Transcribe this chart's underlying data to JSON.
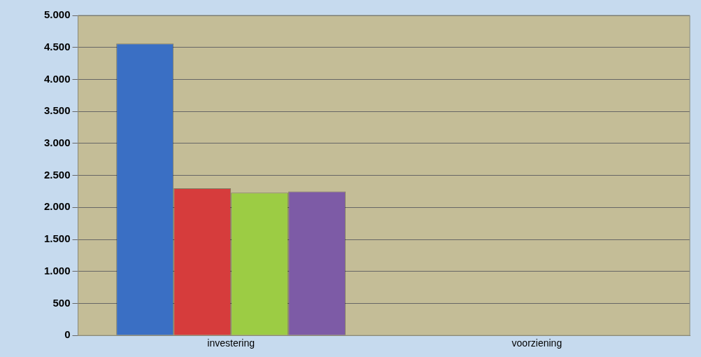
{
  "chart_data": {
    "type": "bar",
    "categories": [
      "investering",
      "voorziening"
    ],
    "series": [
      {
        "color": "#3a6fc4",
        "values": [
          4560,
          null
        ]
      },
      {
        "color": "#d63c3c",
        "values": [
          2300,
          null
        ]
      },
      {
        "color": "#9ccc44",
        "values": [
          2230,
          null
        ]
      },
      {
        "color": "#7d5ba6",
        "values": [
          2250,
          null
        ]
      }
    ],
    "ylim": [
      0,
      5000
    ],
    "yticks": [
      {
        "value": 0,
        "label": "0"
      },
      {
        "value": 500,
        "label": "500"
      },
      {
        "value": 1000,
        "label": "1.000"
      },
      {
        "value": 1500,
        "label": "1.500"
      },
      {
        "value": 2000,
        "label": "2.000"
      },
      {
        "value": 2500,
        "label": "2.500"
      },
      {
        "value": 3000,
        "label": "3.000"
      },
      {
        "value": 3500,
        "label": "3.500"
      },
      {
        "value": 4000,
        "label": "4.000"
      },
      {
        "value": 4500,
        "label": "4.500"
      },
      {
        "value": 5000,
        "label": "5.000"
      }
    ],
    "grid": "y",
    "legend": false
  }
}
